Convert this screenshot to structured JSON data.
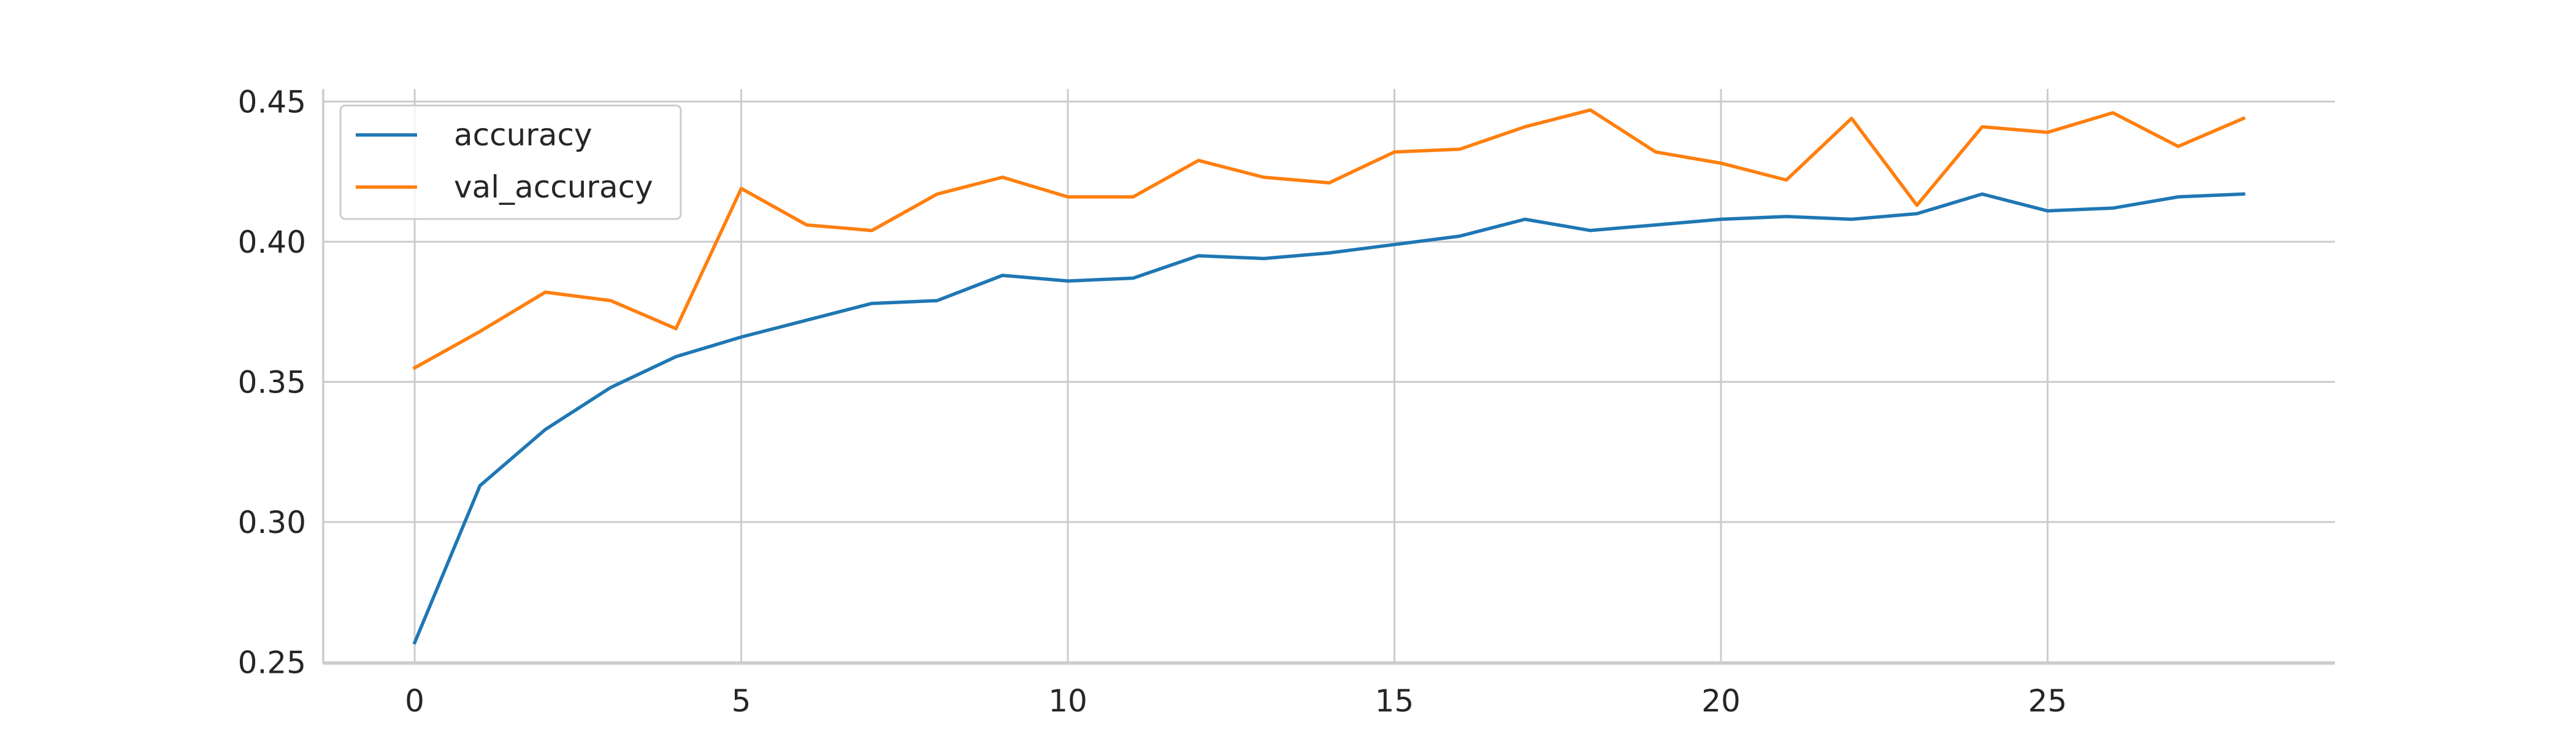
{
  "chart_data": {
    "type": "line",
    "title": "",
    "xlabel": "",
    "ylabel": "",
    "x": [
      0,
      1,
      2,
      3,
      4,
      5,
      6,
      7,
      8,
      9,
      10,
      11,
      12,
      13,
      14,
      15,
      16,
      17,
      18,
      19,
      20,
      21,
      22,
      23,
      24,
      25,
      26,
      27,
      28
    ],
    "series": [
      {
        "name": "accuracy",
        "color": "#1f77b4",
        "values": [
          0.257,
          0.313,
          0.333,
          0.348,
          0.359,
          0.366,
          0.372,
          0.378,
          0.379,
          0.388,
          0.386,
          0.387,
          0.395,
          0.394,
          0.396,
          0.399,
          0.402,
          0.408,
          0.404,
          0.406,
          0.408,
          0.409,
          0.408,
          0.41,
          0.417,
          0.411,
          0.412,
          0.416,
          0.417
        ]
      },
      {
        "name": "val_accuracy",
        "color": "#ff7f0e",
        "values": [
          0.355,
          0.368,
          0.382,
          0.379,
          0.369,
          0.419,
          0.406,
          0.404,
          0.417,
          0.423,
          0.416,
          0.416,
          0.429,
          0.423,
          0.421,
          0.432,
          0.433,
          0.441,
          0.447,
          0.432,
          0.428,
          0.422,
          0.444,
          0.413,
          0.441,
          0.439,
          0.446,
          0.434,
          0.444
        ]
      }
    ],
    "xlim": [
      -1.4,
      29.4
    ],
    "ylim": [
      0.2495,
      0.4545
    ],
    "xticks": [
      0,
      5,
      10,
      15,
      20,
      25
    ],
    "yticks": [
      0.25,
      0.3,
      0.35,
      0.4,
      0.45
    ],
    "xtick_labels": [
      "0",
      "5",
      "10",
      "15",
      "20",
      "25"
    ],
    "ytick_labels": [
      "0.25",
      "0.30",
      "0.35",
      "0.40",
      "0.45"
    ],
    "grid": true,
    "legend": "top-left",
    "grid_color": "#cccccc",
    "axis_color": "#cccccc",
    "text_color": "#262626"
  }
}
